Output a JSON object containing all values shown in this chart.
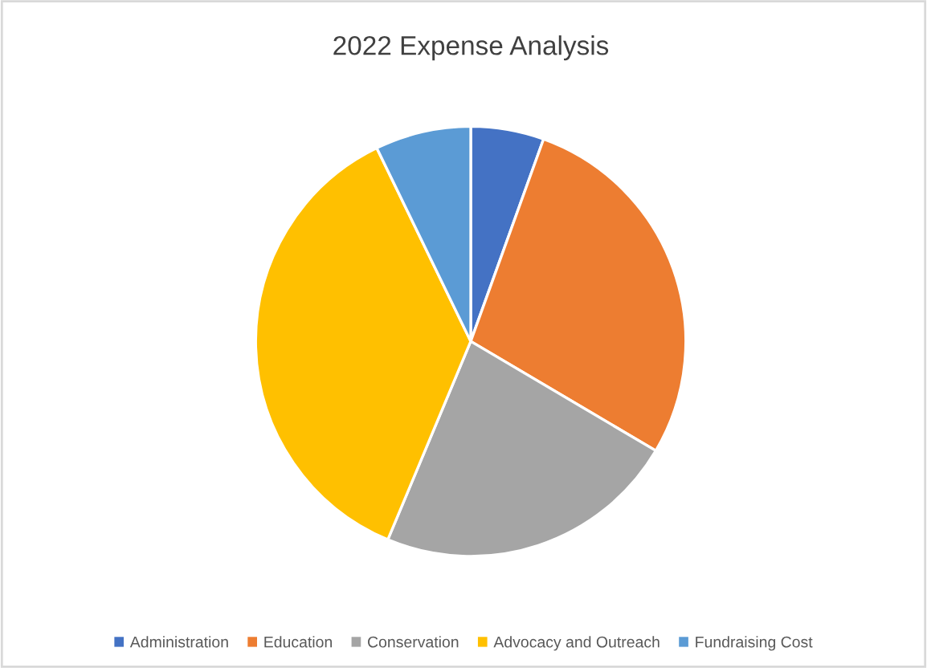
{
  "chart_data": {
    "type": "pie",
    "title": "2022 Expense Analysis",
    "categories": [
      "Administration",
      "Education",
      "Conservation",
      "Advocacy and Outreach",
      "Fundraising Cost"
    ],
    "values": [
      5.5,
      28.0,
      22.8,
      36.5,
      7.2
    ],
    "colors": [
      "#4472c4",
      "#ed7d31",
      "#a5a5a5",
      "#ffc000",
      "#5b9bd5"
    ],
    "legend": "bottom"
  }
}
